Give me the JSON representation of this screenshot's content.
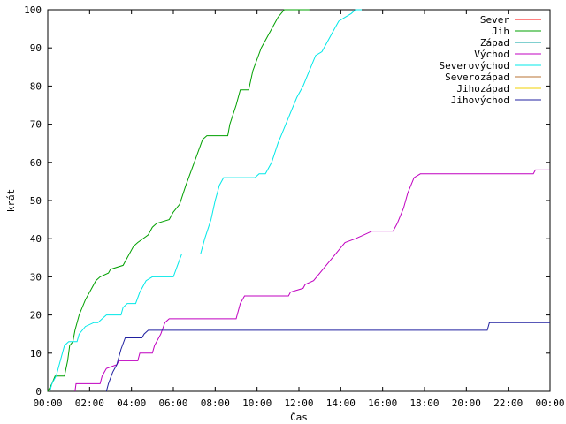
{
  "chart_data": {
    "type": "line",
    "xlabel": "Čas",
    "ylabel": "krát",
    "xlim": [
      0,
      24
    ],
    "ylim": [
      0,
      100
    ],
    "xticks": [
      {
        "v": 0,
        "label": "00:00"
      },
      {
        "v": 2,
        "label": "02:00"
      },
      {
        "v": 4,
        "label": "04:00"
      },
      {
        "v": 6,
        "label": "06:00"
      },
      {
        "v": 8,
        "label": "08:00"
      },
      {
        "v": 10,
        "label": "10:00"
      },
      {
        "v": 12,
        "label": "12:00"
      },
      {
        "v": 14,
        "label": "14:00"
      },
      {
        "v": 16,
        "label": "16:00"
      },
      {
        "v": 18,
        "label": "18:00"
      },
      {
        "v": 20,
        "label": "20:00"
      },
      {
        "v": 22,
        "label": "22:00"
      },
      {
        "v": 24,
        "label": "00:00"
      }
    ],
    "yticks": [
      {
        "v": 0,
        "label": "0"
      },
      {
        "v": 10,
        "label": "10"
      },
      {
        "v": 20,
        "label": "20"
      },
      {
        "v": 30,
        "label": "30"
      },
      {
        "v": 40,
        "label": "40"
      },
      {
        "v": 50,
        "label": "50"
      },
      {
        "v": 60,
        "label": "60"
      },
      {
        "v": 70,
        "label": "70"
      },
      {
        "v": 80,
        "label": "80"
      },
      {
        "v": 90,
        "label": "90"
      },
      {
        "v": 100,
        "label": "100"
      }
    ],
    "grid": false,
    "legend_position": "top-right",
    "series": [
      {
        "name": "Sever",
        "color": "#ff0000",
        "points": []
      },
      {
        "name": "Jih",
        "color": "#00a000",
        "points": [
          [
            0,
            0
          ],
          [
            0.2,
            2
          ],
          [
            0.35,
            4
          ],
          [
            0.8,
            4
          ],
          [
            0.95,
            8
          ],
          [
            1.05,
            12
          ],
          [
            1.2,
            13
          ],
          [
            1.3,
            16
          ],
          [
            1.5,
            20
          ],
          [
            1.8,
            24
          ],
          [
            2.1,
            27
          ],
          [
            2.3,
            29
          ],
          [
            2.5,
            30
          ],
          [
            2.9,
            31
          ],
          [
            3.0,
            32
          ],
          [
            3.6,
            33
          ],
          [
            3.8,
            35
          ],
          [
            4.1,
            38
          ],
          [
            4.3,
            39
          ],
          [
            4.8,
            41
          ],
          [
            5.0,
            43
          ],
          [
            5.2,
            44
          ],
          [
            5.8,
            45
          ],
          [
            6.0,
            47
          ],
          [
            6.3,
            49
          ],
          [
            6.6,
            54
          ],
          [
            7.0,
            60
          ],
          [
            7.4,
            66
          ],
          [
            7.6,
            67
          ],
          [
            8.6,
            67
          ],
          [
            8.7,
            70
          ],
          [
            9.0,
            75
          ],
          [
            9.2,
            79
          ],
          [
            9.6,
            79
          ],
          [
            9.8,
            84
          ],
          [
            10.2,
            90
          ],
          [
            10.5,
            93
          ],
          [
            10.8,
            96
          ],
          [
            11.0,
            98
          ],
          [
            11.3,
            100
          ],
          [
            12.5,
            100
          ]
        ]
      },
      {
        "name": "Západ",
        "color": "#00a0a0",
        "points": []
      },
      {
        "name": "Východ",
        "color": "#c000c0",
        "points": [
          [
            1.3,
            0
          ],
          [
            1.35,
            2
          ],
          [
            2.5,
            2
          ],
          [
            2.6,
            4
          ],
          [
            2.8,
            6
          ],
          [
            3.3,
            7
          ],
          [
            3.4,
            8
          ],
          [
            4.3,
            8
          ],
          [
            4.4,
            10
          ],
          [
            5.0,
            10
          ],
          [
            5.1,
            12
          ],
          [
            5.4,
            15
          ],
          [
            5.6,
            18
          ],
          [
            5.8,
            19
          ],
          [
            9.0,
            19
          ],
          [
            9.2,
            23
          ],
          [
            9.4,
            25
          ],
          [
            11.5,
            25
          ],
          [
            11.6,
            26
          ],
          [
            12.2,
            27
          ],
          [
            12.3,
            28
          ],
          [
            12.7,
            29
          ],
          [
            13.0,
            31
          ],
          [
            13.3,
            33
          ],
          [
            13.6,
            35
          ],
          [
            13.9,
            37
          ],
          [
            14.2,
            39
          ],
          [
            14.7,
            40
          ],
          [
            15.1,
            41
          ],
          [
            15.5,
            42
          ],
          [
            16.5,
            42
          ],
          [
            16.7,
            44
          ],
          [
            17.0,
            48
          ],
          [
            17.2,
            52
          ],
          [
            17.5,
            56
          ],
          [
            17.8,
            57
          ],
          [
            18.4,
            57
          ],
          [
            18.55,
            57
          ],
          [
            23.2,
            57
          ],
          [
            23.3,
            58
          ],
          [
            24,
            58
          ]
        ]
      },
      {
        "name": "Severovýchod",
        "color": "#00e8e8",
        "points": [
          [
            0.1,
            0
          ],
          [
            0.2,
            2
          ],
          [
            0.4,
            4
          ],
          [
            0.6,
            8
          ],
          [
            0.8,
            12
          ],
          [
            1.0,
            13
          ],
          [
            1.4,
            13
          ],
          [
            1.5,
            15
          ],
          [
            1.8,
            17
          ],
          [
            2.2,
            18
          ],
          [
            2.4,
            18
          ],
          [
            2.6,
            19
          ],
          [
            2.8,
            20
          ],
          [
            3.5,
            20
          ],
          [
            3.6,
            22
          ],
          [
            3.8,
            23
          ],
          [
            4.2,
            23
          ],
          [
            4.4,
            26
          ],
          [
            4.7,
            29
          ],
          [
            5.0,
            30
          ],
          [
            6.0,
            30
          ],
          [
            6.2,
            33
          ],
          [
            6.4,
            36
          ],
          [
            7.3,
            36
          ],
          [
            7.5,
            40
          ],
          [
            7.8,
            45
          ],
          [
            8.0,
            50
          ],
          [
            8.2,
            54
          ],
          [
            8.4,
            56
          ],
          [
            9.9,
            56
          ],
          [
            10.1,
            57
          ],
          [
            10.4,
            57
          ],
          [
            10.7,
            60
          ],
          [
            11.0,
            65
          ],
          [
            11.3,
            69
          ],
          [
            11.6,
            73
          ],
          [
            11.9,
            77
          ],
          [
            12.2,
            80
          ],
          [
            12.5,
            84
          ],
          [
            12.8,
            88
          ],
          [
            13.1,
            89
          ],
          [
            13.4,
            92
          ],
          [
            13.7,
            95
          ],
          [
            13.9,
            97
          ],
          [
            14.2,
            98
          ],
          [
            14.5,
            99
          ],
          [
            14.7,
            100
          ],
          [
            15.0,
            100
          ]
        ]
      },
      {
        "name": "Severozápad",
        "color": "#b87333",
        "points": []
      },
      {
        "name": "Jihozápad",
        "color": "#f0d000",
        "points": []
      },
      {
        "name": "Jihovýchod",
        "color": "#2020a0",
        "points": [
          [
            2.8,
            0
          ],
          [
            2.9,
            2
          ],
          [
            3.1,
            5
          ],
          [
            3.3,
            7
          ],
          [
            3.5,
            11
          ],
          [
            3.7,
            14
          ],
          [
            4.5,
            14
          ],
          [
            4.6,
            15
          ],
          [
            4.8,
            16
          ],
          [
            21.0,
            16
          ],
          [
            21.1,
            18
          ],
          [
            24,
            18
          ]
        ]
      }
    ]
  }
}
